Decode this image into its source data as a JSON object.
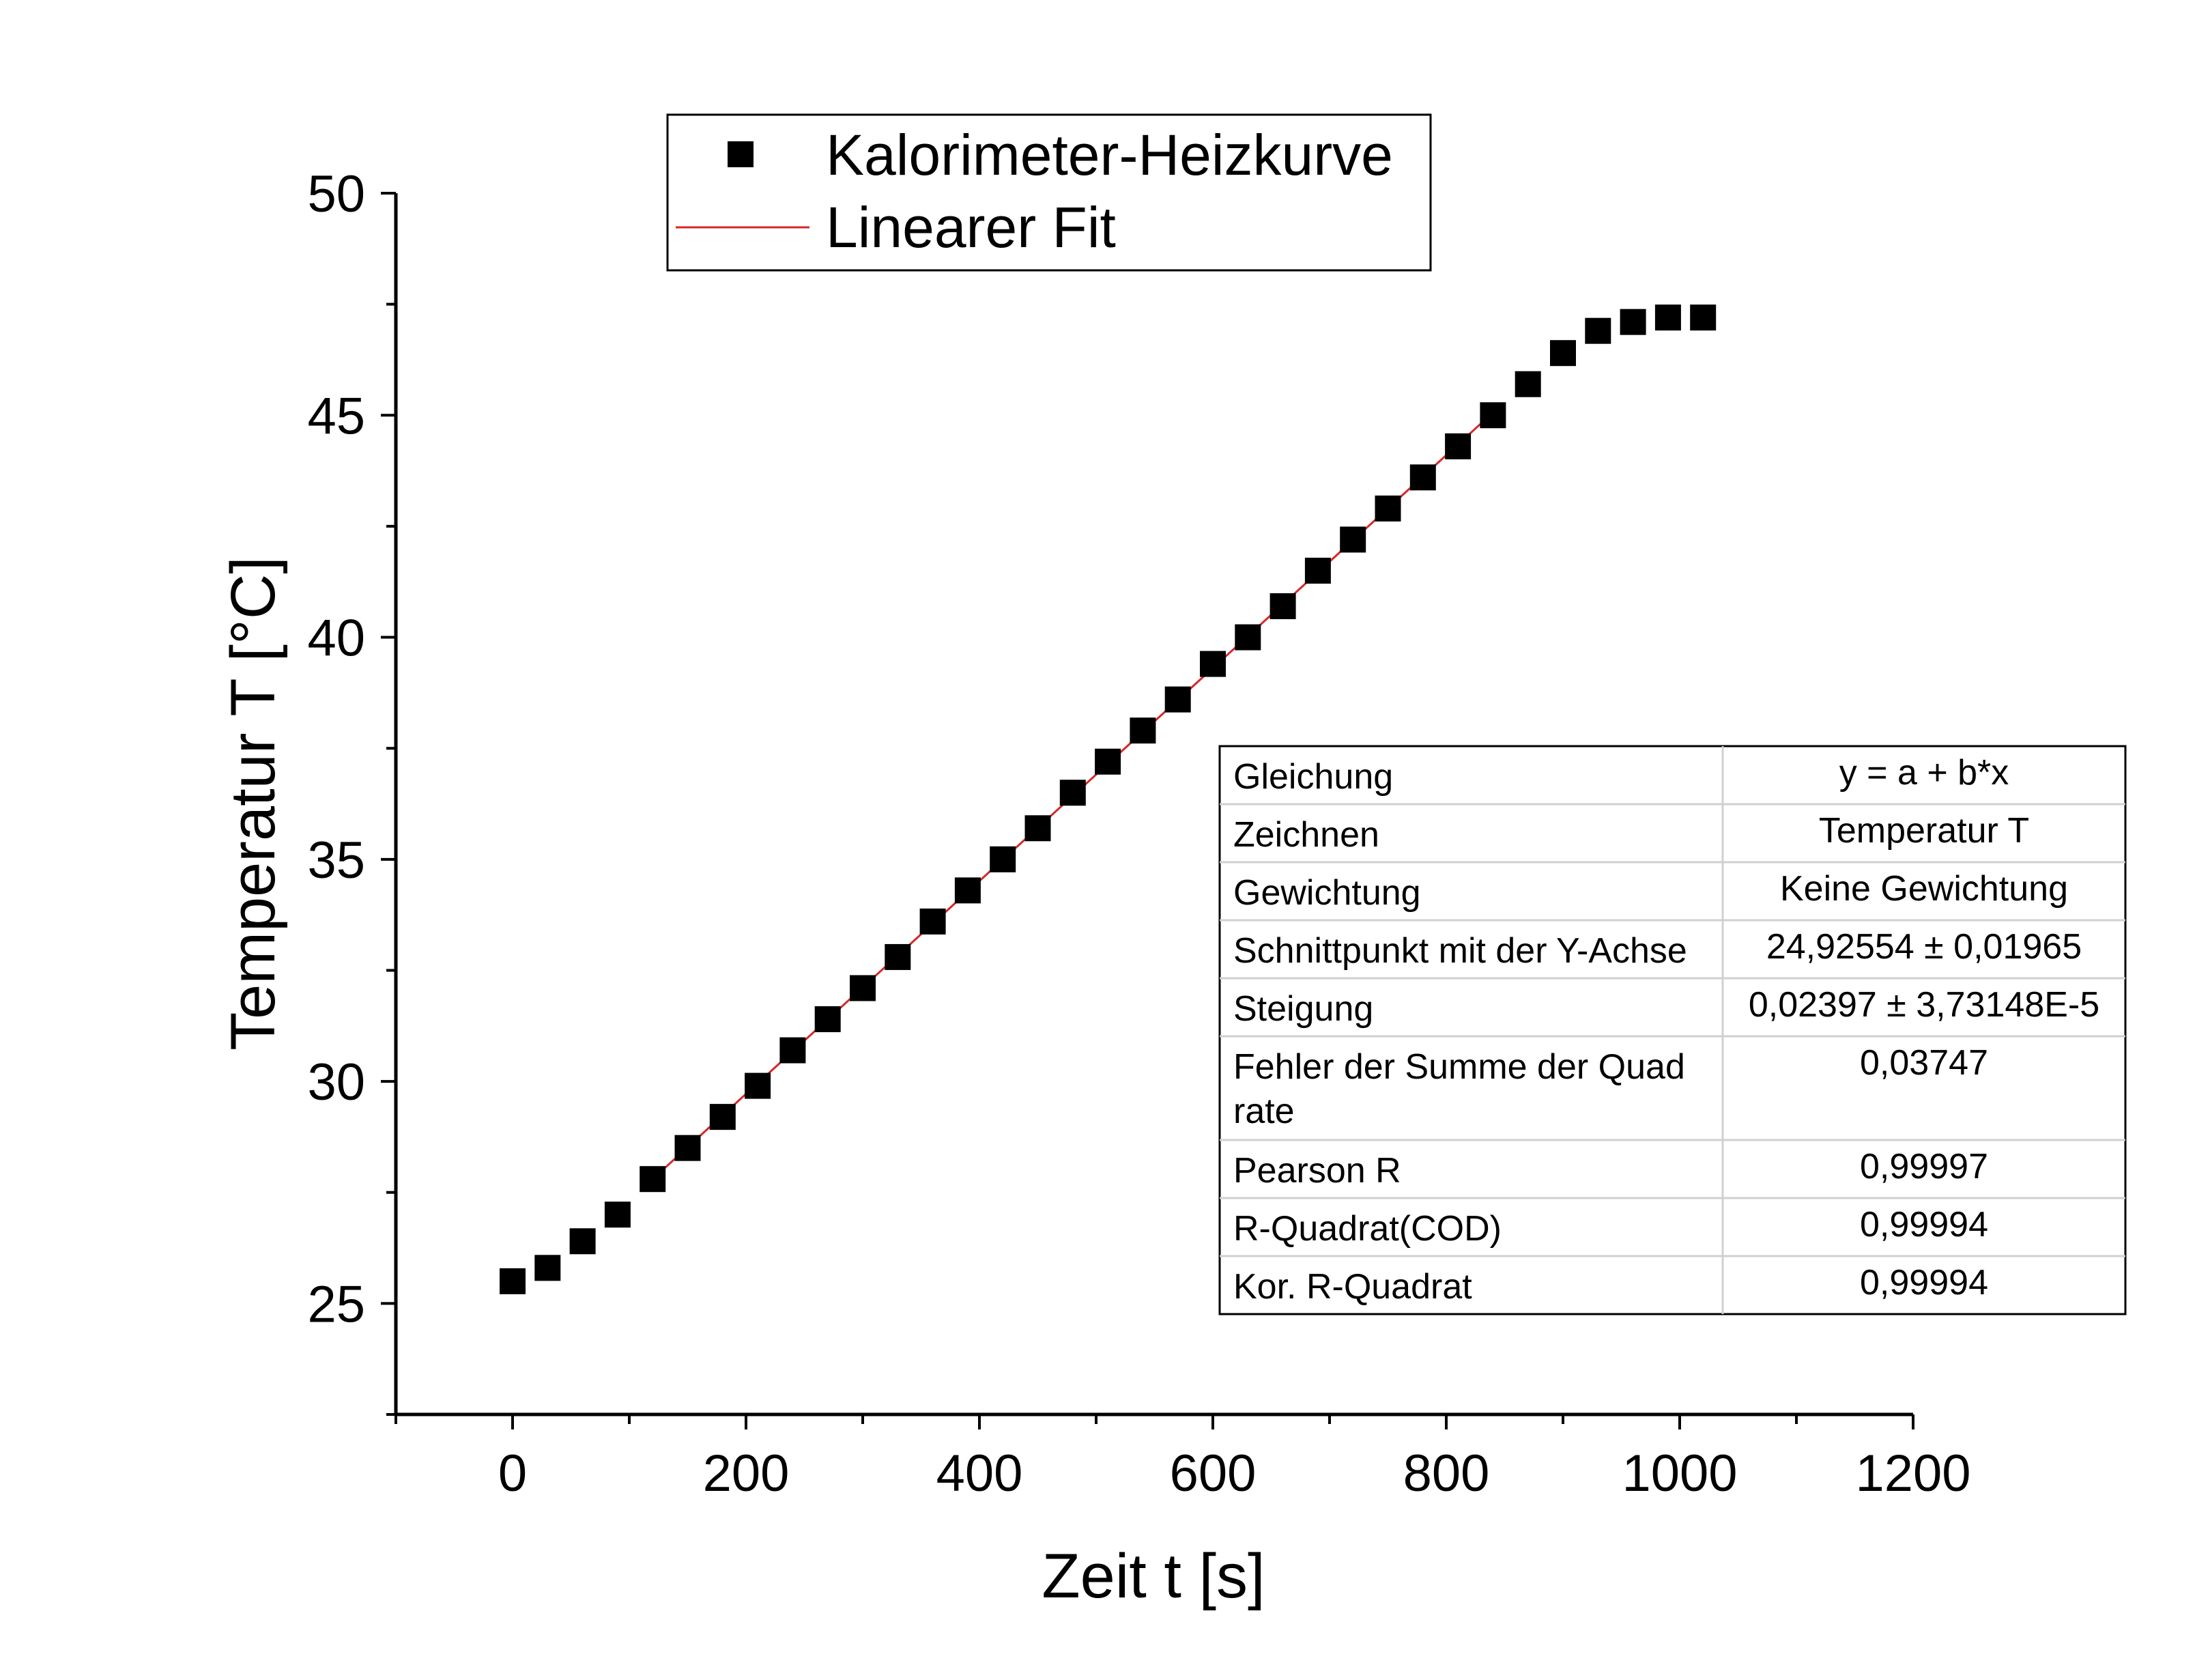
{
  "colors": {
    "marker": "#000000",
    "fit_line": "#d62728",
    "axis": "#000000",
    "table_border": "#000000",
    "table_grid": "#d0d0d0"
  },
  "chart_data": {
    "type": "scatter",
    "xlabel": "Zeit t [s]",
    "ylabel": "Temperatur T [°C]",
    "xlim": [
      -100,
      1200
    ],
    "ylim": [
      22.5,
      50
    ],
    "x_ticks": [
      0,
      200,
      400,
      600,
      800,
      1000,
      1200
    ],
    "x_tick_labels": [
      "0",
      "200",
      "400",
      "600",
      "800",
      "1000",
      "1200"
    ],
    "y_ticks": [
      25,
      30,
      35,
      40,
      45,
      50
    ],
    "y_tick_labels": [
      "25",
      "30",
      "35",
      "40",
      "45",
      "50"
    ],
    "grid": false,
    "legend_position": "top",
    "series": [
      {
        "name": "Kalorimeter-Heizkurve",
        "marker": "square",
        "x": [
          0,
          30,
          60,
          90,
          120,
          150,
          180,
          210,
          240,
          270,
          300,
          330,
          360,
          390,
          420,
          450,
          480,
          510,
          540,
          570,
          600,
          630,
          660,
          690,
          720,
          750,
          780,
          810,
          840,
          870,
          900,
          930,
          960,
          990,
          1020
        ],
        "y": [
          25.5,
          25.8,
          26.4,
          27.0,
          27.8,
          28.5,
          29.2,
          29.9,
          30.7,
          31.4,
          32.1,
          32.8,
          33.6,
          34.3,
          35.0,
          35.7,
          36.5,
          37.2,
          37.9,
          38.6,
          39.4,
          40.0,
          40.7,
          41.5,
          42.2,
          42.9,
          43.6,
          44.3,
          45.0,
          45.7,
          46.4,
          46.9,
          47.1,
          47.2,
          47.2
        ]
      },
      {
        "name": "Linearer Fit",
        "type": "line",
        "x": [
          120,
          840
        ],
        "y": [
          27.8,
          45.06
        ]
      }
    ],
    "fit_table": [
      {
        "label": "Gleichung",
        "value": "y = a + b*x"
      },
      {
        "label": "Zeichnen",
        "value": "Temperatur T"
      },
      {
        "label": "Gewichtung",
        "value": "Keine Gewichtung"
      },
      {
        "label": "Schnittpunkt mit der Y-Achse",
        "value": "24,92554 ± 0,01965"
      },
      {
        "label": "Steigung",
        "value": "0,02397 ± 3,73148E-5"
      },
      {
        "label": "Fehler der Summe der Quad",
        "label2": "rate",
        "value": "0,03747"
      },
      {
        "label": "Pearson R",
        "value": "0,99997"
      },
      {
        "label": "R-Quadrat(COD)",
        "value": "0,99994"
      },
      {
        "label": "Kor. R-Quadrat",
        "value": "0,99994"
      }
    ]
  }
}
